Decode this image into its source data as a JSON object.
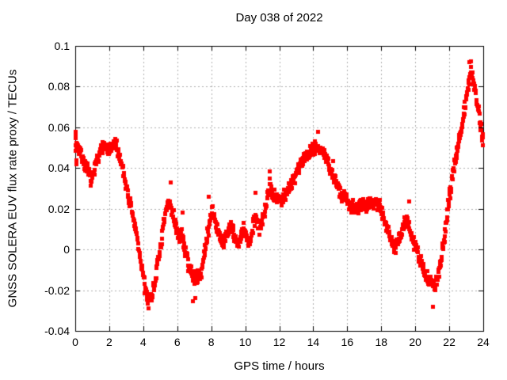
{
  "chart_data": {
    "type": "scatter",
    "title": "Day 038 of 2022",
    "xlabel": "GPS time / hours",
    "ylabel": "GNSS SOLERA EUV flux rate proxy / TECUs",
    "xlim": [
      0,
      24
    ],
    "ylim": [
      -0.04,
      0.1
    ],
    "grid": true,
    "legend": "none",
    "marker": {
      "shape": "filled-square",
      "size": 5,
      "color": "#ff0000"
    },
    "grid_color": "#b0b0b0",
    "border_color": "#000000",
    "background_color": "#ffffff",
    "xticks": [
      {
        "value": 0,
        "label": "0"
      },
      {
        "value": 2,
        "label": "2"
      },
      {
        "value": 4,
        "label": "4"
      },
      {
        "value": 6,
        "label": "6"
      },
      {
        "value": 8,
        "label": "8"
      },
      {
        "value": 10,
        "label": "10"
      },
      {
        "value": 12,
        "label": "12"
      },
      {
        "value": 14,
        "label": "14"
      },
      {
        "value": 16,
        "label": "16"
      },
      {
        "value": 18,
        "label": "18"
      },
      {
        "value": 20,
        "label": "20"
      },
      {
        "value": 22,
        "label": "22"
      },
      {
        "value": 24,
        "label": "24"
      }
    ],
    "yticks": [
      {
        "value": 0.1,
        "label": "0.1"
      },
      {
        "value": 0.08,
        "label": "0.08"
      },
      {
        "value": 0.06,
        "label": "0.06"
      },
      {
        "value": 0.04,
        "label": "0.04"
      },
      {
        "value": 0.02,
        "label": "0.02"
      },
      {
        "value": 0,
        "label": "0"
      },
      {
        "value": -0.02,
        "label": "-0.02"
      },
      {
        "value": -0.04,
        "label": "-0.04"
      }
    ],
    "series": [
      {
        "name": "EUV flux rate proxy",
        "sample_step": 0.02,
        "noise_amplitude": 0.004,
        "noise_seed": 7,
        "keypoints": [
          [
            0.0,
            0.052
          ],
          [
            0.2,
            0.05
          ],
          [
            0.5,
            0.043
          ],
          [
            0.8,
            0.037
          ],
          [
            1.0,
            0.034
          ],
          [
            1.3,
            0.045
          ],
          [
            1.5,
            0.049
          ],
          [
            1.7,
            0.051
          ],
          [
            1.9,
            0.048
          ],
          [
            2.1,
            0.049
          ],
          [
            2.3,
            0.052
          ],
          [
            2.5,
            0.049
          ],
          [
            2.8,
            0.04
          ],
          [
            3.0,
            0.031
          ],
          [
            3.3,
            0.02
          ],
          [
            3.6,
            0.008
          ],
          [
            3.9,
            -0.008
          ],
          [
            4.1,
            -0.019
          ],
          [
            4.3,
            -0.024
          ],
          [
            4.5,
            -0.023
          ],
          [
            4.7,
            -0.015
          ],
          [
            4.9,
            -0.005
          ],
          [
            5.1,
            0.006
          ],
          [
            5.3,
            0.017
          ],
          [
            5.5,
            0.024
          ],
          [
            5.7,
            0.019
          ],
          [
            5.9,
            0.012
          ],
          [
            6.1,
            0.006
          ],
          [
            6.25,
            0.008
          ],
          [
            6.5,
            -0.002
          ],
          [
            6.8,
            -0.011
          ],
          [
            7.1,
            -0.014
          ],
          [
            7.4,
            -0.011
          ],
          [
            7.6,
            -0.003
          ],
          [
            7.8,
            0.008
          ],
          [
            8.05,
            0.02
          ],
          [
            8.3,
            0.012
          ],
          [
            8.55,
            0.004
          ],
          [
            8.7,
            0.002
          ],
          [
            8.9,
            0.007
          ],
          [
            9.1,
            0.012
          ],
          [
            9.35,
            0.007
          ],
          [
            9.5,
            0.003
          ],
          [
            9.7,
            0.005
          ],
          [
            9.9,
            0.01
          ],
          [
            10.1,
            0.005
          ],
          [
            10.25,
            0.002
          ],
          [
            10.45,
            0.012
          ],
          [
            10.6,
            0.017
          ],
          [
            10.85,
            0.009
          ],
          [
            11.1,
            0.016
          ],
          [
            11.3,
            0.027
          ],
          [
            11.45,
            0.032
          ],
          [
            11.6,
            0.028
          ],
          [
            11.85,
            0.0255
          ],
          [
            12.1,
            0.0235
          ],
          [
            12.4,
            0.028
          ],
          [
            12.7,
            0.031
          ],
          [
            13.0,
            0.038
          ],
          [
            13.3,
            0.043
          ],
          [
            13.6,
            0.046
          ],
          [
            13.9,
            0.0495
          ],
          [
            14.2,
            0.0505
          ],
          [
            14.5,
            0.049
          ],
          [
            14.8,
            0.044
          ],
          [
            15.1,
            0.037
          ],
          [
            15.4,
            0.032
          ],
          [
            15.65,
            0.027
          ],
          [
            15.9,
            0.0265
          ],
          [
            16.15,
            0.022
          ],
          [
            16.5,
            0.0205
          ],
          [
            16.8,
            0.021
          ],
          [
            17.1,
            0.022
          ],
          [
            17.45,
            0.0235
          ],
          [
            17.7,
            0.024
          ],
          [
            17.95,
            0.021
          ],
          [
            18.2,
            0.014
          ],
          [
            18.5,
            0.008
          ],
          [
            18.8,
            0.001
          ],
          [
            19.0,
            0.003
          ],
          [
            19.2,
            0.009
          ],
          [
            19.45,
            0.015
          ],
          [
            19.7,
            0.009
          ],
          [
            19.9,
            0.004
          ],
          [
            20.1,
            -0.001
          ],
          [
            20.35,
            -0.007
          ],
          [
            20.6,
            -0.012
          ],
          [
            20.9,
            -0.016
          ],
          [
            21.15,
            -0.018
          ],
          [
            21.35,
            -0.014
          ],
          [
            21.5,
            -0.007
          ],
          [
            21.7,
            0.005
          ],
          [
            21.9,
            0.019
          ],
          [
            22.1,
            0.031
          ],
          [
            22.3,
            0.042
          ],
          [
            22.5,
            0.051
          ],
          [
            22.7,
            0.059
          ],
          [
            22.9,
            0.068
          ],
          [
            23.05,
            0.077
          ],
          [
            23.2,
            0.085
          ],
          [
            23.32,
            0.088
          ],
          [
            23.45,
            0.082
          ],
          [
            23.6,
            0.074
          ],
          [
            23.75,
            0.067
          ],
          [
            23.9,
            0.058
          ],
          [
            24.0,
            0.054
          ]
        ],
        "outliers": [
          [
            0.02,
            0.058
          ],
          [
            0.04,
            0.0565
          ],
          [
            0.05,
            0.042
          ],
          [
            0.07,
            0.044
          ],
          [
            4.32,
            -0.029
          ],
          [
            5.62,
            0.033
          ],
          [
            6.33,
            0.018
          ],
          [
            6.9,
            -0.0255
          ],
          [
            7.08,
            -0.024
          ],
          [
            7.85,
            0.026
          ],
          [
            10.58,
            0.028
          ],
          [
            11.45,
            0.0385
          ],
          [
            14.3,
            0.058
          ],
          [
            15.15,
            0.0435
          ],
          [
            19.65,
            0.0235
          ],
          [
            21.03,
            -0.028
          ],
          [
            23.2,
            0.092
          ],
          [
            23.3,
            0.0925
          ]
        ]
      }
    ]
  }
}
